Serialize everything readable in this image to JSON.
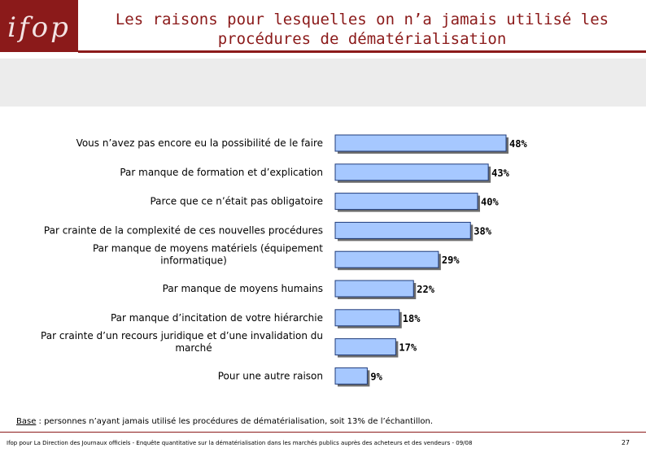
{
  "header": {
    "logo_text": "ifop",
    "title_line1": "Les raisons pour lesquelles on n’a jamais utilisé les",
    "title_line2": "procédures de dématérialisation"
  },
  "colors": {
    "brand": "#8b1a1a",
    "bar_fill": "#a6c8ff",
    "bar_stroke": "#1f3b7a",
    "band": "#ececec"
  },
  "chart_data": {
    "type": "bar",
    "orientation": "horizontal",
    "title": "",
    "xlabel": "",
    "ylabel": "",
    "xlim": [
      0,
      48
    ],
    "categories": [
      [
        "Vous n’avez pas encore eu la possibilité de le faire"
      ],
      [
        "Par manque de formation et d’explication"
      ],
      [
        "Parce que ce n’était pas obligatoire"
      ],
      [
        "Par crainte de la complexité de ces nouvelles procédures"
      ],
      [
        "Par manque de moyens matériels (équipement",
        "informatique)"
      ],
      [
        "Par manque de moyens humains"
      ],
      [
        "Par manque d’incitation de votre hiérarchie"
      ],
      [
        "Par crainte d’un recours juridique et d’une invalidation du",
        "marché"
      ],
      [
        "Pour une autre raison"
      ]
    ],
    "values": [
      48,
      43,
      40,
      38,
      29,
      22,
      18,
      17,
      9
    ],
    "value_labels": [
      "48%",
      "43%",
      "40%",
      "38%",
      "29%",
      "22%",
      "18%",
      "17%",
      "9%"
    ]
  },
  "note": {
    "base_label": "Base",
    "base_text": " : personnes n’ayant jamais utilisé les procédures de dématérialisation, soit  13% de l’échantillon."
  },
  "footer": {
    "text": "Ifop pour La Direction des Journaux officiels - Enquête quantitative sur la dématérialisation dans les marchés publics auprès des acheteurs et des vendeurs - 09/08",
    "page": "27"
  }
}
